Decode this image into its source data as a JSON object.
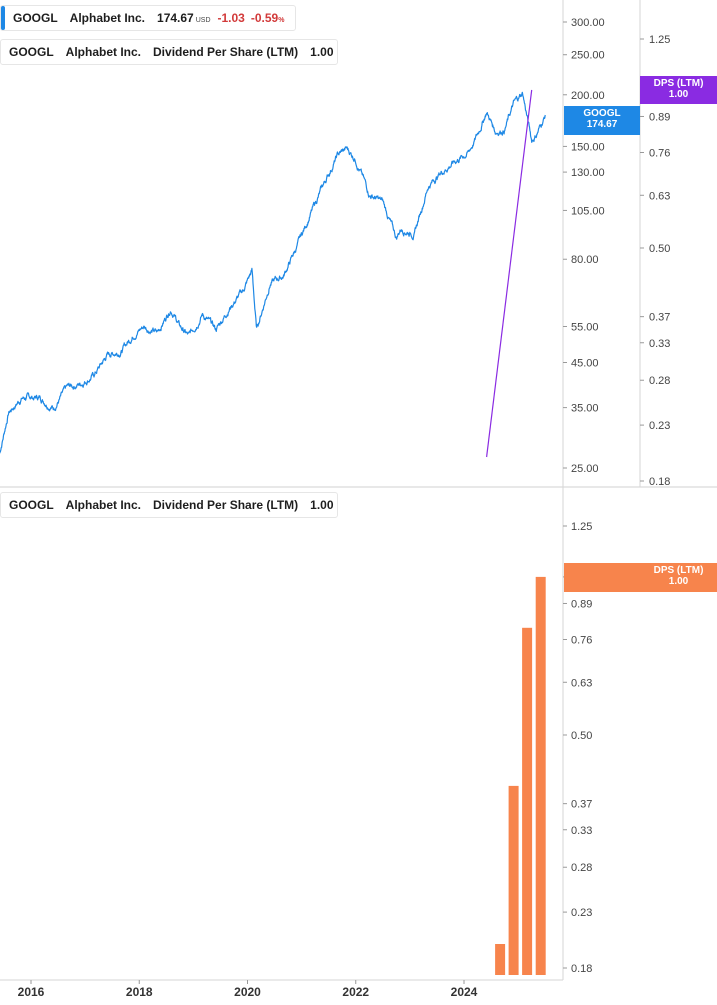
{
  "legends": {
    "price": {
      "symbol": "GOOGL",
      "name": "Alphabet Inc.",
      "price": "174.67",
      "currency": "USD",
      "change": "-1.03",
      "change_pct": "-0.59",
      "pct_sign": "%",
      "color": "#1e88e5"
    },
    "dps_top": {
      "symbol": "GOOGL",
      "name": "Alphabet Inc.",
      "metric": "Dividend Per Share (LTM)",
      "value": "1.00",
      "color": "#8a2be2"
    },
    "dps_bottom": {
      "symbol": "GOOGL",
      "name": "Alphabet Inc.",
      "metric": "Dividend Per Share (LTM)",
      "value": "1.00",
      "color": "#f7844c"
    }
  },
  "badges": {
    "price": {
      "line1": "GOOGL",
      "line2": "174.67",
      "color": "#1e88e5"
    },
    "dps_top": {
      "line1": "DPS (LTM)",
      "line2": "1.00",
      "color": "#8a2be2"
    },
    "dps_bottom": {
      "line1": "DPS (LTM)",
      "line2": "1.00",
      "color": "#f7844c"
    }
  },
  "chart_data": [
    {
      "type": "line",
      "panel": "top",
      "scale": "log",
      "x_range": [
        "2015-06",
        "2025-07"
      ],
      "price_axis": {
        "ticks": [
          "300.00",
          "250.00",
          "200.00",
          "150.00",
          "130.00",
          "105.00",
          "80.00",
          "55.00",
          "45.00",
          "35.00",
          "25.00"
        ],
        "tick_values": [
          300,
          250,
          200,
          150,
          130,
          105,
          80,
          55,
          45,
          35,
          25
        ],
        "ylim": [
          22,
          340
        ]
      },
      "dps_axis": {
        "ticks": [
          "1.25",
          "0.89",
          "0.76",
          "0.63",
          "0.50",
          "0.37",
          "0.33",
          "0.28",
          "0.23",
          "0.18"
        ],
        "tick_values": [
          1.25,
          0.89,
          0.76,
          0.63,
          0.5,
          0.37,
          0.33,
          0.28,
          0.23,
          0.18
        ],
        "ylim": [
          0.175,
          1.45
        ]
      },
      "series": [
        {
          "name": "GOOGL",
          "color": "#1e88e5",
          "axis": "price",
          "x": [
            "2015-06",
            "2015-08",
            "2015-11",
            "2016-03",
            "2016-06",
            "2016-09",
            "2016-12",
            "2017-03",
            "2017-06",
            "2017-09",
            "2017-12",
            "2018-02",
            "2018-05",
            "2018-08",
            "2018-10",
            "2018-12",
            "2019-03",
            "2019-06",
            "2019-09",
            "2019-12",
            "2020-02",
            "2020-03",
            "2020-06",
            "2020-09",
            "2020-12",
            "2021-03",
            "2021-06",
            "2021-09",
            "2021-11",
            "2022-01",
            "2022-04",
            "2022-07",
            "2022-10",
            "2022-11",
            "2023-02",
            "2023-05",
            "2023-08",
            "2023-11",
            "2024-02",
            "2024-04",
            "2024-06",
            "2024-08",
            "2024-10",
            "2024-12",
            "2025-02",
            "2025-04",
            "2025-05",
            "2025-07"
          ],
          "y": [
            27,
            34,
            37,
            37,
            35,
            39,
            40,
            42,
            47,
            48,
            53,
            55,
            53,
            61,
            55,
            52,
            59,
            54,
            61,
            67,
            75,
            54,
            70,
            73,
            86,
            103,
            122,
            143,
            148,
            140,
            115,
            110,
            90,
            95,
            92,
            120,
            130,
            138,
            145,
            160,
            182,
            163,
            165,
            190,
            202,
            155,
            160,
            178
          ]
        },
        {
          "name": "DPS (LTM)",
          "color": "#8a2be2",
          "axis": "dps",
          "x": [
            "2024-06",
            "2025-04"
          ],
          "y": [
            0.2,
            1.0
          ]
        }
      ],
      "xlabel": "",
      "ylabel": ""
    },
    {
      "type": "bar",
      "panel": "bottom",
      "scale": "log",
      "axis_ticks": [
        "1.25",
        "1.00",
        "0.89",
        "0.76",
        "0.63",
        "0.50",
        "0.37",
        "0.33",
        "0.28",
        "0.23",
        "0.18"
      ],
      "tick_values": [
        1.25,
        1.0,
        0.89,
        0.76,
        0.63,
        0.5,
        0.37,
        0.33,
        0.28,
        0.23,
        0.18
      ],
      "ylim": [
        0.175,
        1.45
      ],
      "series": [
        {
          "name": "DPS (LTM)",
          "color": "#f7844c",
          "x": [
            "2024-09",
            "2024-12",
            "2025-03",
            "2025-06"
          ],
          "values": [
            0.2,
            0.4,
            0.8,
            1.0
          ]
        }
      ]
    }
  ],
  "x_axis": {
    "labels": [
      "2016",
      "2018",
      "2020",
      "2022",
      "2024"
    ],
    "label_x": [
      "2016-01",
      "2018-01",
      "2020-01",
      "2022-01",
      "2024-01"
    ]
  }
}
